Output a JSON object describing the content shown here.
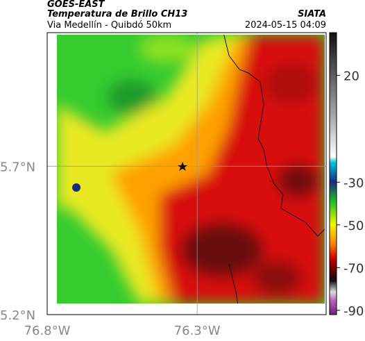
{
  "header": {
    "title": "GOES-EAST",
    "subtitle": "Temperatura de Brillo CH13",
    "source": "SIATA",
    "region": "Via Medellín - Quibdó 50km",
    "timestamp": "2024-05-15 04:09"
  },
  "map": {
    "lon_range": [
      -76.8,
      -75.87
    ],
    "lat_range": [
      5.2,
      6.15
    ],
    "lon_ticks": [
      {
        "value": -76.8,
        "label": "76.8°W"
      },
      {
        "value": -76.3,
        "label": "76.3°W"
      }
    ],
    "lat_ticks": [
      {
        "value": 5.2,
        "label": "5.2°N"
      },
      {
        "value": 5.7,
        "label": "5.7°N"
      }
    ],
    "grid": true
  },
  "colorbar": {
    "range": [
      -92,
      40
    ],
    "ticks": [
      20,
      -30,
      -50,
      -70,
      -90
    ]
  }
}
